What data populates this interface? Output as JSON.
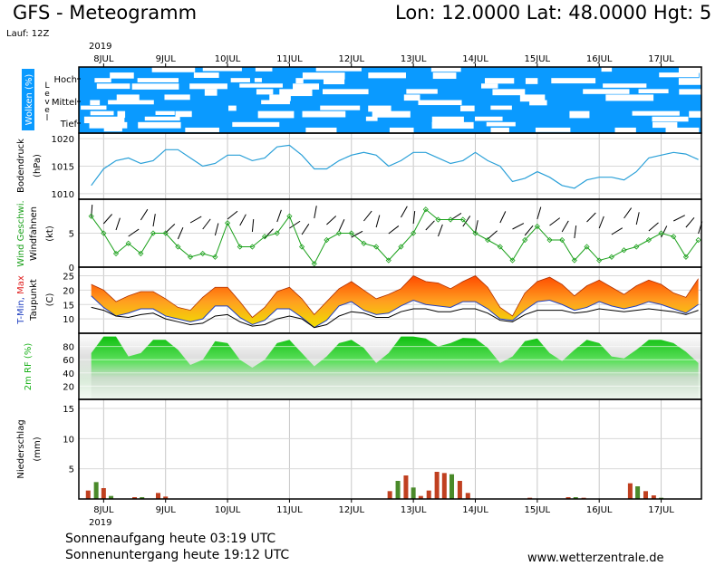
{
  "header": {
    "title": "GFS - Meteogramm",
    "location": "Lon: 12.0000 Lat: 48.0000 Hgt: 5",
    "run": "Lauf: 12Z"
  },
  "footer": {
    "sunrise": "Sonnenaufgang heute 03:19 UTC",
    "sunset": "Sonnenuntergang heute 19:12 UTC",
    "site": "www.wetterzentrale.de"
  },
  "colors": {
    "cloud_bg": "#0a9aff",
    "pressure_line": "#2aa0d8",
    "wind_line": "#1aa01a",
    "tmax_top": "#ff5000",
    "tmin_bottom": "#f0e000",
    "rh_fill": "#18d018",
    "precip_green": "#4a8a2a",
    "precip_red": "#c04020"
  },
  "chart_data": {
    "type": "meteogram",
    "year": "2019",
    "date_labels": [
      "8JUL",
      "9JUL",
      "10JUL",
      "11JUL",
      "12JUL",
      "13JUL",
      "14JUL",
      "15JUL",
      "16JUL",
      "17JUL"
    ],
    "clouds": {
      "label": "Wolken (%)",
      "level_label": "Level",
      "levels": [
        "Hoch",
        "Mittel",
        "Tief"
      ]
    },
    "pressure": {
      "label": "Bodendruck",
      "unit": "(hPa)",
      "yticks": [
        1010,
        1015,
        1020
      ],
      "ylim": [
        1009,
        1021
      ],
      "x_days": [
        7.8,
        8.0,
        8.2,
        8.4,
        8.6,
        8.8,
        9.0,
        9.2,
        9.4,
        9.6,
        9.8,
        10.0,
        10.2,
        10.4,
        10.6,
        10.8,
        11.0,
        11.2,
        11.4,
        11.6,
        11.8,
        12.0,
        12.2,
        12.4,
        12.6,
        12.8,
        13.0,
        13.2,
        13.4,
        13.6,
        13.8,
        14.0,
        14.2,
        14.4,
        14.6,
        14.8,
        15.0,
        15.2,
        15.4,
        15.6,
        15.8,
        16.0,
        16.2,
        16.4,
        16.6,
        16.8,
        17.0,
        17.2,
        17.4,
        17.6
      ],
      "values": [
        1011.5,
        1014.5,
        1016,
        1016.5,
        1015.5,
        1016,
        1018,
        1018,
        1016.5,
        1015,
        1015.5,
        1017,
        1017,
        1016,
        1016.5,
        1018.5,
        1018.8,
        1017,
        1014.5,
        1014.5,
        1016,
        1017,
        1017.5,
        1017,
        1015,
        1016,
        1017.5,
        1017.5,
        1016.5,
        1015.5,
        1016,
        1017.5,
        1016,
        1015,
        1012.2,
        1012.8,
        1014,
        1013,
        1011.5,
        1011,
        1012.5,
        1013,
        1013,
        1012.5,
        1014,
        1016.5,
        1017,
        1017.5,
        1017.2,
        1016.2
      ]
    },
    "wind": {
      "label": "Wind Geschwi.",
      "sublabel": "Windfahnen",
      "unit": "(kt)",
      "yticks": [
        0,
        5
      ],
      "ylim": [
        0,
        10
      ],
      "x_days": [
        7.8,
        8.0,
        8.2,
        8.4,
        8.6,
        8.8,
        9.0,
        9.2,
        9.4,
        9.6,
        9.8,
        10.0,
        10.2,
        10.4,
        10.6,
        10.8,
        11.0,
        11.2,
        11.4,
        11.6,
        11.8,
        12.0,
        12.2,
        12.4,
        12.6,
        12.8,
        13.0,
        13.2,
        13.4,
        13.6,
        13.8,
        14.0,
        14.2,
        14.4,
        14.6,
        14.8,
        15.0,
        15.2,
        15.4,
        15.6,
        15.8,
        16.0,
        16.2,
        16.4,
        16.6,
        16.8,
        17.0,
        17.2,
        17.4,
        17.6
      ],
      "values": [
        7.5,
        5,
        2,
        3.5,
        2,
        5,
        5,
        3,
        1.5,
        2,
        1.5,
        6.5,
        3,
        3,
        4.5,
        5,
        7.5,
        3,
        0.5,
        4,
        5,
        5,
        3.5,
        3,
        1,
        3,
        5,
        8.5,
        7,
        7,
        7,
        5,
        4,
        3,
        1,
        4,
        6,
        4,
        4,
        1,
        3,
        1,
        1.5,
        2.5,
        3,
        4,
        5,
        4.5,
        1.5,
        4
      ]
    },
    "temperature": {
      "label_min": "T-Min,",
      "label_max": "Max",
      "label_dew": "Taupunkt",
      "unit": "(C)",
      "yticks": [
        10,
        15,
        20,
        25
      ],
      "ylim": [
        5,
        28
      ],
      "x_days": [
        7.8,
        8.0,
        8.2,
        8.4,
        8.6,
        8.8,
        9.0,
        9.2,
        9.4,
        9.6,
        9.8,
        10.0,
        10.2,
        10.4,
        10.6,
        10.8,
        11.0,
        11.2,
        11.4,
        11.6,
        11.8,
        12.0,
        12.2,
        12.4,
        12.6,
        12.8,
        13.0,
        13.2,
        13.4,
        13.6,
        13.8,
        14.0,
        14.2,
        14.4,
        14.6,
        14.8,
        15.0,
        15.2,
        15.4,
        15.6,
        15.8,
        16.0,
        16.2,
        16.4,
        16.6,
        16.8,
        17.0,
        17.2,
        17.4,
        17.6
      ],
      "tmax": [
        22,
        20,
        16,
        18,
        19.5,
        19.5,
        17,
        14,
        13,
        17.5,
        21,
        21,
        16,
        10.5,
        14,
        19.5,
        21,
        17,
        11.5,
        16,
        20.5,
        23,
        20,
        17,
        18.5,
        20.5,
        25,
        23,
        22.5,
        20.5,
        23,
        25,
        21,
        14,
        11,
        19,
        23,
        24.5,
        22,
        18,
        21.5,
        23.5,
        21,
        18.5,
        21.5,
        23.5,
        22,
        19,
        17.5,
        24
      ],
      "tmin": [
        18,
        14,
        11,
        12,
        13.5,
        13.5,
        11,
        10,
        9,
        10,
        14.5,
        14.5,
        10.5,
        8,
        9.5,
        13.5,
        13.5,
        10.5,
        7,
        9.5,
        14.5,
        16,
        13,
        11.5,
        12,
        14.5,
        16.5,
        15,
        14.5,
        14,
        16,
        16,
        13.5,
        10,
        9.5,
        13,
        16,
        16.5,
        15,
        13,
        14,
        16,
        14.5,
        13.5,
        14.5,
        16,
        15,
        13.5,
        12,
        15
      ],
      "dew": [
        14,
        13,
        11,
        10.5,
        11.5,
        12,
        10,
        9,
        8,
        8.5,
        11,
        11.5,
        9,
        7.5,
        8,
        10,
        11,
        10,
        7,
        8,
        11,
        12.5,
        12,
        10.5,
        10.5,
        12.5,
        13.5,
        13.5,
        12.5,
        12.5,
        13.5,
        13.5,
        12,
        9.5,
        9,
        11.5,
        13,
        13,
        13,
        12,
        12.5,
        13.5,
        13,
        12.5,
        13,
        13.5,
        13,
        12.5,
        11.5,
        13
      ]
    },
    "humidity": {
      "label": "2m RF (%)",
      "yticks": [
        20,
        40,
        60,
        80
      ],
      "ylim": [
        0,
        100
      ],
      "x_days": [
        7.8,
        8.0,
        8.2,
        8.4,
        8.6,
        8.8,
        9.0,
        9.2,
        9.4,
        9.6,
        9.8,
        10.0,
        10.2,
        10.4,
        10.6,
        10.8,
        11.0,
        11.2,
        11.4,
        11.6,
        11.8,
        12.0,
        12.2,
        12.4,
        12.6,
        12.8,
        13.0,
        13.2,
        13.4,
        13.6,
        13.8,
        14.0,
        14.2,
        14.4,
        14.6,
        14.8,
        15.0,
        15.2,
        15.4,
        15.6,
        15.8,
        16.0,
        16.2,
        16.4,
        16.6,
        16.8,
        17.0,
        17.2,
        17.4,
        17.6
      ],
      "values": [
        70,
        95,
        95,
        65,
        70,
        90,
        90,
        75,
        52,
        60,
        88,
        85,
        60,
        48,
        60,
        85,
        90,
        70,
        50,
        65,
        85,
        90,
        78,
        55,
        70,
        95,
        95,
        92,
        80,
        85,
        93,
        92,
        78,
        55,
        65,
        88,
        92,
        70,
        58,
        75,
        90,
        85,
        65,
        62,
        75,
        90,
        90,
        85,
        72,
        55
      ]
    },
    "precipitation": {
      "label": "Niederschlag",
      "unit": "(mm)",
      "yticks": [
        5,
        10,
        15
      ],
      "ylim": [
        0,
        16.5
      ],
      "bars": [
        {
          "x": 7.75,
          "v": 1.4,
          "c": "r"
        },
        {
          "x": 7.88,
          "v": 2.8,
          "c": "g"
        },
        {
          "x": 8.0,
          "v": 1.8,
          "c": "r"
        },
        {
          "x": 8.12,
          "v": 0.5,
          "c": "g"
        },
        {
          "x": 8.5,
          "v": 0.3,
          "c": "r"
        },
        {
          "x": 8.62,
          "v": 0.3,
          "c": "g"
        },
        {
          "x": 8.88,
          "v": 1.0,
          "c": "r"
        },
        {
          "x": 9.0,
          "v": 0.4,
          "c": "r"
        },
        {
          "x": 12.62,
          "v": 1.3,
          "c": "r"
        },
        {
          "x": 12.75,
          "v": 3.0,
          "c": "g"
        },
        {
          "x": 12.88,
          "v": 3.9,
          "c": "r"
        },
        {
          "x": 13.0,
          "v": 1.9,
          "c": "g"
        },
        {
          "x": 13.12,
          "v": 0.5,
          "c": "r"
        },
        {
          "x": 13.25,
          "v": 1.4,
          "c": "r"
        },
        {
          "x": 13.38,
          "v": 4.5,
          "c": "r"
        },
        {
          "x": 13.5,
          "v": 4.3,
          "c": "r"
        },
        {
          "x": 13.62,
          "v": 4.1,
          "c": "g"
        },
        {
          "x": 13.75,
          "v": 3.0,
          "c": "r"
        },
        {
          "x": 13.88,
          "v": 1.0,
          "c": "r"
        },
        {
          "x": 14.88,
          "v": 0.2,
          "c": "r"
        },
        {
          "x": 15.5,
          "v": 0.3,
          "c": "r"
        },
        {
          "x": 15.62,
          "v": 0.3,
          "c": "g"
        },
        {
          "x": 15.75,
          "v": 0.2,
          "c": "r"
        },
        {
          "x": 16.5,
          "v": 2.6,
          "c": "r"
        },
        {
          "x": 16.62,
          "v": 2.1,
          "c": "g"
        },
        {
          "x": 16.75,
          "v": 1.3,
          "c": "r"
        },
        {
          "x": 16.88,
          "v": 0.6,
          "c": "r"
        },
        {
          "x": 17.0,
          "v": 0.2,
          "c": "g"
        }
      ]
    }
  }
}
